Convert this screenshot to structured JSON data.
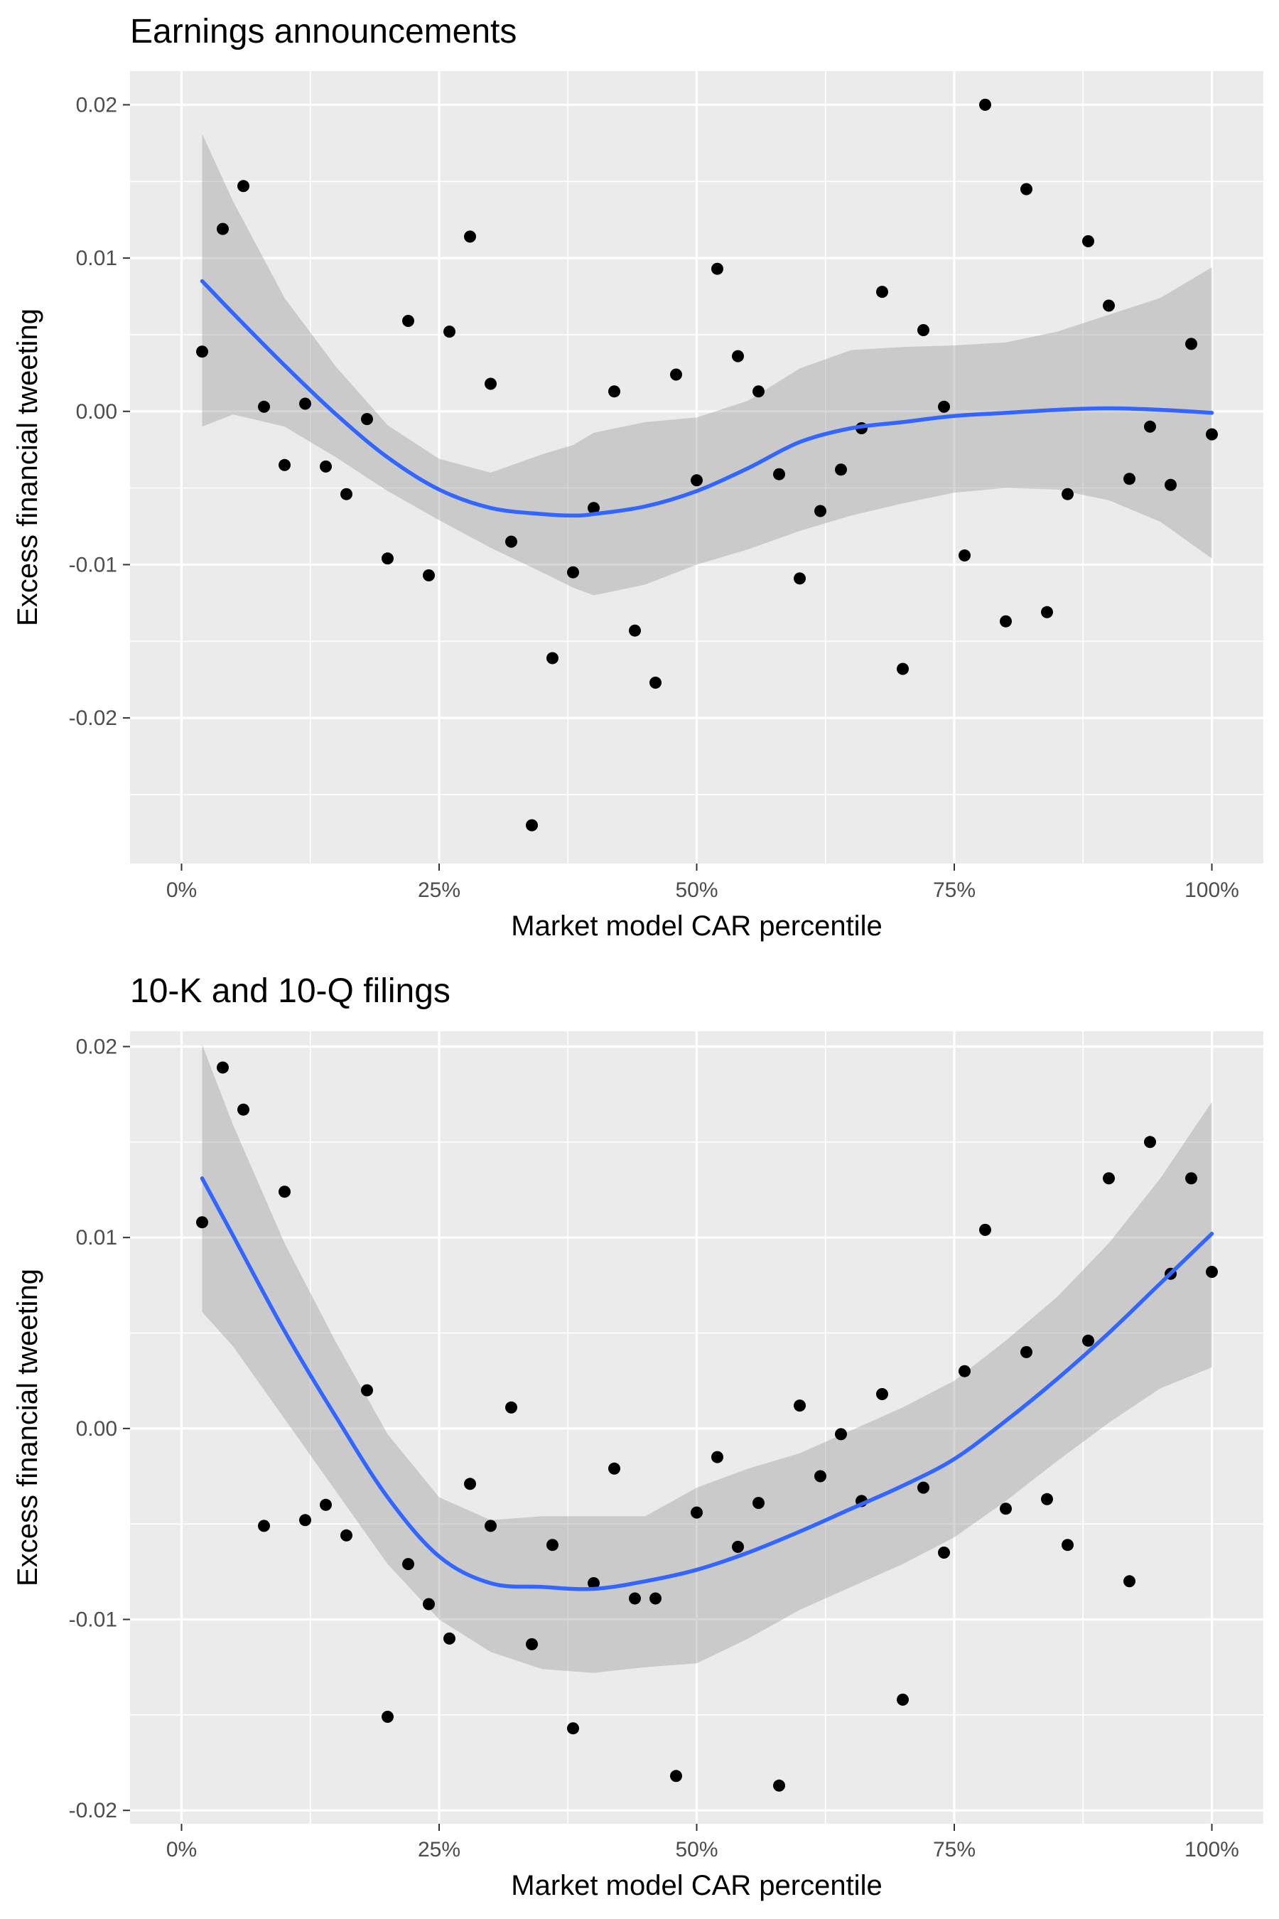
{
  "chart_data": [
    {
      "type": "scatter",
      "title": "Earnings announcements",
      "xlabel": "Market model CAR percentile",
      "ylabel": "Excess financial tweeting",
      "xlim": [
        -0.05,
        1.05
      ],
      "ylim": [
        -0.0295,
        0.0222
      ],
      "x_ticks": [
        0,
        0.25,
        0.5,
        0.75,
        1.0
      ],
      "x_tick_labels": [
        "0%",
        "25%",
        "50%",
        "75%",
        "100%"
      ],
      "y_ticks": [
        -0.02,
        -0.01,
        0.0,
        0.01,
        0.02
      ],
      "y_tick_labels": [
        "-0.02",
        "-0.01",
        "0.00",
        "0.01",
        "0.02"
      ],
      "grid": true,
      "points": {
        "x": [
          0.02,
          0.04,
          0.06,
          0.08,
          0.1,
          0.12,
          0.14,
          0.16,
          0.18,
          0.2,
          0.22,
          0.24,
          0.26,
          0.28,
          0.3,
          0.32,
          0.34,
          0.36,
          0.38,
          0.4,
          0.42,
          0.44,
          0.46,
          0.48,
          0.5,
          0.52,
          0.54,
          0.56,
          0.58,
          0.6,
          0.62,
          0.64,
          0.66,
          0.68,
          0.7,
          0.72,
          0.74,
          0.76,
          0.78,
          0.8,
          0.82,
          0.84,
          0.86,
          0.88,
          0.9,
          0.92,
          0.94,
          0.96,
          0.98,
          1.0
        ],
        "y": [
          0.0039,
          0.0119,
          0.0147,
          0.0003,
          -0.0035,
          0.0005,
          -0.0036,
          -0.0054,
          -0.0005,
          -0.0096,
          0.0059,
          -0.0107,
          0.0052,
          0.0114,
          0.0018,
          -0.0085,
          -0.027,
          -0.0161,
          -0.0105,
          -0.0063,
          0.0013,
          -0.0143,
          -0.0177,
          0.0024,
          -0.0045,
          0.0093,
          0.0036,
          0.0013,
          -0.0041,
          -0.0109,
          -0.0065,
          -0.0038,
          -0.0011,
          0.0078,
          -0.0168,
          0.0053,
          0.0003,
          -0.0094,
          0.02,
          -0.0137,
          0.0145,
          -0.0131,
          -0.0054,
          0.0111,
          0.0069,
          -0.0044,
          -0.001,
          -0.0048,
          0.0044,
          -0.0015
        ]
      },
      "smooth": {
        "color": "#3366ff",
        "x": [
          0.02,
          0.05,
          0.1,
          0.15,
          0.2,
          0.25,
          0.3,
          0.35,
          0.38,
          0.4,
          0.45,
          0.5,
          0.55,
          0.6,
          0.65,
          0.7,
          0.75,
          0.8,
          0.85,
          0.9,
          0.95,
          1.0
        ],
        "y": [
          0.0085,
          0.0064,
          0.003,
          -0.0002,
          -0.003,
          -0.0051,
          -0.0063,
          -0.0067,
          -0.0068,
          -0.0067,
          -0.0062,
          -0.0052,
          -0.0037,
          -0.002,
          -0.0011,
          -0.0007,
          -0.0003,
          -0.0001,
          0.0001,
          0.0002,
          0.0001,
          -0.0001
        ],
        "lower": [
          -0.001,
          -0.0002,
          -0.001,
          -0.003,
          -0.0052,
          -0.0071,
          -0.0089,
          -0.0105,
          -0.0115,
          -0.012,
          -0.0113,
          -0.01,
          -0.009,
          -0.0078,
          -0.0068,
          -0.006,
          -0.0053,
          -0.005,
          -0.0051,
          -0.0058,
          -0.0072,
          -0.0096
        ],
        "upper": [
          0.0181,
          0.0137,
          0.0074,
          0.0029,
          -0.0009,
          -0.0031,
          -0.004,
          -0.0028,
          -0.0022,
          -0.0014,
          -0.0007,
          -0.0004,
          0.0007,
          0.0028,
          0.004,
          0.0042,
          0.0043,
          0.0045,
          0.0052,
          0.0063,
          0.0074,
          0.0094
        ]
      }
    },
    {
      "type": "scatter",
      "title": "10-K and 10-Q filings",
      "xlabel": "Market model CAR percentile",
      "ylabel": "Excess financial tweeting",
      "xlim": [
        -0.05,
        1.05
      ],
      "ylim": [
        -0.0207,
        0.0208
      ],
      "x_ticks": [
        0,
        0.25,
        0.5,
        0.75,
        1.0
      ],
      "x_tick_labels": [
        "0%",
        "25%",
        "50%",
        "75%",
        "100%"
      ],
      "y_ticks": [
        -0.02,
        -0.01,
        0.0,
        0.01,
        0.02
      ],
      "y_tick_labels": [
        "-0.02",
        "-0.01",
        "0.00",
        "0.01",
        "0.02"
      ],
      "grid": true,
      "points": {
        "x": [
          0.02,
          0.04,
          0.06,
          0.08,
          0.1,
          0.12,
          0.14,
          0.16,
          0.18,
          0.2,
          0.22,
          0.24,
          0.26,
          0.28,
          0.3,
          0.32,
          0.34,
          0.36,
          0.38,
          0.4,
          0.42,
          0.44,
          0.46,
          0.48,
          0.5,
          0.52,
          0.54,
          0.56,
          0.58,
          0.6,
          0.62,
          0.64,
          0.66,
          0.68,
          0.7,
          0.72,
          0.74,
          0.76,
          0.78,
          0.8,
          0.82,
          0.84,
          0.86,
          0.88,
          0.9,
          0.92,
          0.94,
          0.96,
          0.98,
          1.0
        ],
        "y": [
          0.0108,
          0.0189,
          0.0167,
          -0.0051,
          0.0124,
          -0.0048,
          -0.004,
          -0.0056,
          0.002,
          -0.0151,
          -0.0071,
          -0.0092,
          -0.011,
          -0.0029,
          -0.0051,
          0.0011,
          -0.0113,
          -0.0061,
          -0.0157,
          -0.0081,
          -0.0021,
          -0.0089,
          -0.0089,
          -0.0182,
          -0.0044,
          -0.0015,
          -0.0062,
          -0.0039,
          -0.0187,
          0.0012,
          -0.0025,
          -0.0003,
          -0.0038,
          0.0018,
          -0.0142,
          -0.0031,
          -0.0065,
          0.003,
          0.0104,
          -0.0042,
          0.004,
          -0.0037,
          -0.0061,
          0.0046,
          0.0131,
          -0.008,
          0.015,
          0.0081,
          0.0131,
          0.0082
        ]
      },
      "smooth": {
        "color": "#3366ff",
        "x": [
          0.02,
          0.05,
          0.1,
          0.15,
          0.2,
          0.25,
          0.3,
          0.35,
          0.4,
          0.45,
          0.5,
          0.55,
          0.6,
          0.65,
          0.7,
          0.75,
          0.8,
          0.85,
          0.9,
          0.95,
          1.0
        ],
        "y": [
          0.0131,
          0.0101,
          0.0051,
          0.0006,
          -0.0036,
          -0.0067,
          -0.0081,
          -0.0083,
          -0.0084,
          -0.008,
          -0.0074,
          -0.0065,
          -0.0054,
          -0.0042,
          -0.003,
          -0.0016,
          0.0004,
          0.0026,
          0.005,
          0.0076,
          0.0102
        ],
        "lower": [
          0.0061,
          0.0043,
          0.0005,
          -0.0033,
          -0.0071,
          -0.01,
          -0.0117,
          -0.0126,
          -0.0128,
          -0.0125,
          -0.0123,
          -0.011,
          -0.0095,
          -0.0083,
          -0.0071,
          -0.0057,
          -0.0038,
          -0.0017,
          0.0003,
          0.0021,
          0.0032
        ],
        "upper": [
          0.0201,
          0.0159,
          0.0097,
          0.0045,
          -0.0003,
          -0.0036,
          -0.0048,
          -0.0046,
          -0.0046,
          -0.0046,
          -0.0031,
          -0.0021,
          -0.0013,
          -0.0001,
          0.0011,
          0.0025,
          0.0046,
          0.0069,
          0.0097,
          0.0131,
          0.0171
        ]
      }
    }
  ]
}
